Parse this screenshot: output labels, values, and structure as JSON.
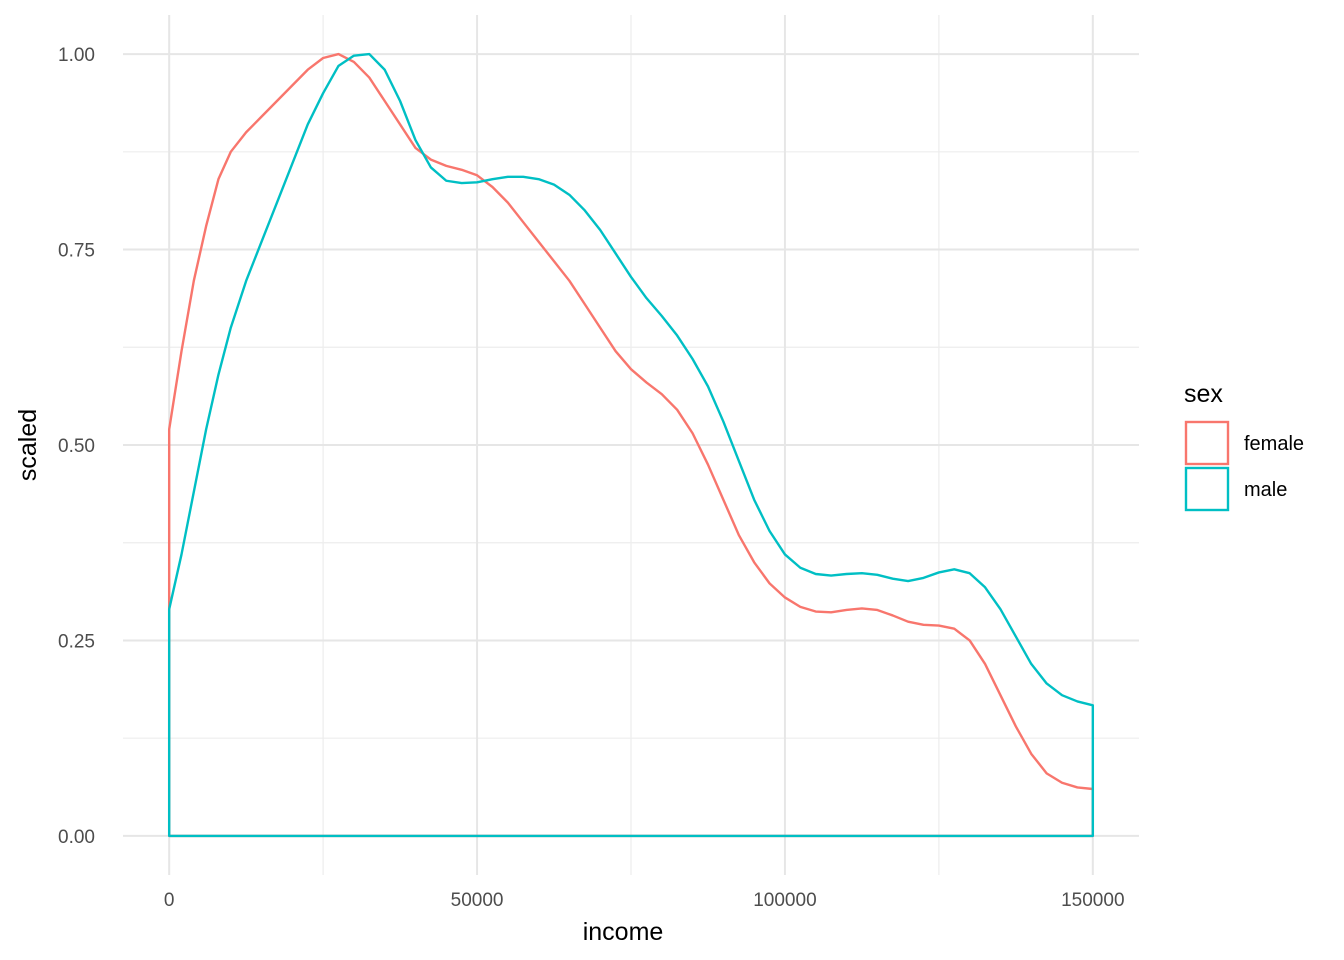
{
  "chart_data": {
    "type": "line",
    "xlabel": "income",
    "ylabel": "scaled",
    "xlim": [
      -7500,
      157500
    ],
    "ylim": [
      -0.05,
      1.05
    ],
    "x_ticks": [
      0,
      50000,
      100000,
      150000
    ],
    "x_tick_labels": [
      "0",
      "50000",
      "100000",
      "150000"
    ],
    "y_ticks": [
      0,
      0.25,
      0.5,
      0.75,
      1.0
    ],
    "y_tick_labels": [
      "0.00",
      "0.25",
      "0.50",
      "0.75",
      "1.00"
    ],
    "x_minor_ticks": [
      25000,
      75000,
      125000
    ],
    "y_minor_ticks": [
      0.125,
      0.375,
      0.625,
      0.875
    ],
    "grid": true,
    "legend": {
      "title": "sex",
      "position": "right",
      "entries": [
        {
          "label": "female",
          "color": "#F8766D"
        },
        {
          "label": "male",
          "color": "#00BFC4"
        }
      ]
    },
    "series": [
      {
        "name": "female",
        "color": "#F8766D",
        "points": [
          [
            0,
            0.52
          ],
          [
            2000,
            0.62
          ],
          [
            4000,
            0.71
          ],
          [
            6000,
            0.78
          ],
          [
            8000,
            0.84
          ],
          [
            10000,
            0.875
          ],
          [
            12500,
            0.9
          ],
          [
            15000,
            0.92
          ],
          [
            17500,
            0.94
          ],
          [
            20000,
            0.96
          ],
          [
            22500,
            0.98
          ],
          [
            25000,
            0.995
          ],
          [
            27500,
            1.0
          ],
          [
            30000,
            0.99
          ],
          [
            32500,
            0.97
          ],
          [
            35000,
            0.94
          ],
          [
            37500,
            0.91
          ],
          [
            40000,
            0.88
          ],
          [
            42500,
            0.865
          ],
          [
            45000,
            0.857
          ],
          [
            47500,
            0.852
          ],
          [
            50000,
            0.845
          ],
          [
            52500,
            0.83
          ],
          [
            55000,
            0.81
          ],
          [
            57500,
            0.785
          ],
          [
            60000,
            0.76
          ],
          [
            62500,
            0.735
          ],
          [
            65000,
            0.71
          ],
          [
            67500,
            0.68
          ],
          [
            70000,
            0.65
          ],
          [
            72500,
            0.62
          ],
          [
            75000,
            0.597
          ],
          [
            77500,
            0.58
          ],
          [
            80000,
            0.565
          ],
          [
            82500,
            0.545
          ],
          [
            85000,
            0.515
          ],
          [
            87500,
            0.475
          ],
          [
            90000,
            0.43
          ],
          [
            92500,
            0.385
          ],
          [
            95000,
            0.35
          ],
          [
            97500,
            0.323
          ],
          [
            100000,
            0.305
          ],
          [
            102500,
            0.293
          ],
          [
            105000,
            0.287
          ],
          [
            107500,
            0.286
          ],
          [
            110000,
            0.289
          ],
          [
            112500,
            0.291
          ],
          [
            115000,
            0.289
          ],
          [
            117500,
            0.282
          ],
          [
            120000,
            0.274
          ],
          [
            122500,
            0.27
          ],
          [
            125000,
            0.269
          ],
          [
            127500,
            0.265
          ],
          [
            130000,
            0.25
          ],
          [
            132500,
            0.22
          ],
          [
            135000,
            0.18
          ],
          [
            137500,
            0.14
          ],
          [
            140000,
            0.105
          ],
          [
            142500,
            0.08
          ],
          [
            145000,
            0.068
          ],
          [
            147500,
            0.062
          ],
          [
            150000,
            0.06
          ]
        ]
      },
      {
        "name": "male",
        "color": "#00BFC4",
        "points": [
          [
            0,
            0.29
          ],
          [
            2000,
            0.36
          ],
          [
            4000,
            0.44
          ],
          [
            6000,
            0.52
          ],
          [
            8000,
            0.59
          ],
          [
            10000,
            0.65
          ],
          [
            12500,
            0.71
          ],
          [
            15000,
            0.76
          ],
          [
            17500,
            0.81
          ],
          [
            20000,
            0.86
          ],
          [
            22500,
            0.91
          ],
          [
            25000,
            0.95
          ],
          [
            27500,
            0.985
          ],
          [
            30000,
            0.998
          ],
          [
            32500,
            1.0
          ],
          [
            35000,
            0.98
          ],
          [
            37500,
            0.94
          ],
          [
            40000,
            0.89
          ],
          [
            42500,
            0.855
          ],
          [
            45000,
            0.838
          ],
          [
            47500,
            0.835
          ],
          [
            50000,
            0.836
          ],
          [
            52500,
            0.84
          ],
          [
            55000,
            0.843
          ],
          [
            57500,
            0.843
          ],
          [
            60000,
            0.84
          ],
          [
            62500,
            0.833
          ],
          [
            65000,
            0.82
          ],
          [
            67500,
            0.8
          ],
          [
            70000,
            0.775
          ],
          [
            72500,
            0.745
          ],
          [
            75000,
            0.715
          ],
          [
            77500,
            0.688
          ],
          [
            80000,
            0.665
          ],
          [
            82500,
            0.64
          ],
          [
            85000,
            0.61
          ],
          [
            87500,
            0.575
          ],
          [
            90000,
            0.53
          ],
          [
            92500,
            0.48
          ],
          [
            95000,
            0.43
          ],
          [
            97500,
            0.39
          ],
          [
            100000,
            0.36
          ],
          [
            102500,
            0.343
          ],
          [
            105000,
            0.335
          ],
          [
            107500,
            0.333
          ],
          [
            110000,
            0.335
          ],
          [
            112500,
            0.336
          ],
          [
            115000,
            0.334
          ],
          [
            117500,
            0.329
          ],
          [
            120000,
            0.326
          ],
          [
            122500,
            0.33
          ],
          [
            125000,
            0.337
          ],
          [
            127500,
            0.341
          ],
          [
            130000,
            0.336
          ],
          [
            132500,
            0.318
          ],
          [
            135000,
            0.29
          ],
          [
            137500,
            0.255
          ],
          [
            140000,
            0.22
          ],
          [
            142500,
            0.195
          ],
          [
            145000,
            0.18
          ],
          [
            147500,
            0.172
          ],
          [
            150000,
            0.167
          ]
        ]
      }
    ]
  }
}
